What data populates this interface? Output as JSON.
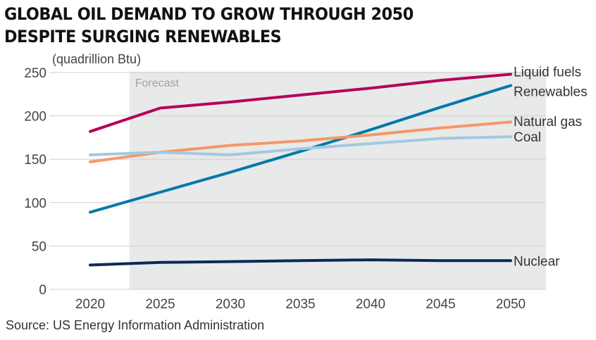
{
  "title_lines": [
    "GLOBAL OIL DEMAND TO GROW THROUGH 2050",
    "DESPITE SURGING RENEWABLES"
  ],
  "source": "Source: US Energy Information Administration",
  "colors": {
    "forecast_band": "#e8e9e9",
    "gridline": "#cfd0d0",
    "axis_text": "#444444",
    "forecast_text": "#a0a3a3",
    "label_text": "#333333"
  },
  "chart_data": {
    "type": "line",
    "ylabel": "(quadrillion Btu)",
    "xlabel": "",
    "x": [
      2020,
      2025,
      2030,
      2035,
      2040,
      2045,
      2050
    ],
    "xlim": [
      2020,
      2050
    ],
    "ylim": [
      0,
      250
    ],
    "y_ticks": [
      0,
      50,
      100,
      150,
      200,
      250
    ],
    "grid": true,
    "forecast_region": {
      "label": "Forecast",
      "start": 2022.8,
      "end": 2052.5
    },
    "series": [
      {
        "name": "Liquid fuels",
        "color": "#b5005b",
        "values": [
          182,
          209,
          216,
          224,
          232,
          241,
          248
        ]
      },
      {
        "name": "Renewables",
        "color": "#0079a8",
        "values": [
          89,
          112,
          135,
          159,
          184,
          210,
          235
        ]
      },
      {
        "name": "Natural gas",
        "color": "#f5976a",
        "values": [
          147,
          158,
          166,
          171,
          178,
          186,
          193
        ]
      },
      {
        "name": "Coal",
        "color": "#a4c8e0",
        "values": [
          155,
          158,
          155,
          162,
          168,
          174,
          176
        ]
      },
      {
        "name": "Nuclear",
        "color": "#0b2857",
        "values": [
          28,
          31,
          32,
          33,
          34,
          33,
          33
        ]
      }
    ]
  }
}
